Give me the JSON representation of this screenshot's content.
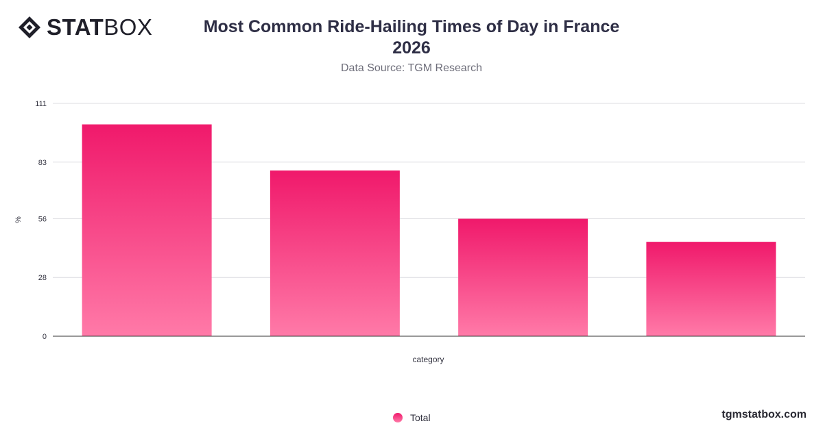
{
  "brand": {
    "logo_bold": "STAT",
    "logo_light": "BOX",
    "website": "tgmstatbox.com"
  },
  "header": {
    "title_line1": "Most Common Ride-Hailing Times of Day in France",
    "title_line2": "2026",
    "subtitle": "Data Source: TGM Research"
  },
  "colors": {
    "bar_top": "#f0196b",
    "bar_bottom": "#ff7aa8",
    "grid": "#dcdce0",
    "axis": "#333333",
    "text": "#333340"
  },
  "chart_data": {
    "type": "bar",
    "title": "Most Common Ride-Hailing Times of Day in France 2026",
    "subtitle": "Data Source: TGM Research",
    "xlabel": "category",
    "ylabel": "%",
    "categories": [
      "",
      "",
      "",
      ""
    ],
    "series": [
      {
        "name": "Total",
        "values": [
          101,
          79,
          56,
          45
        ]
      }
    ],
    "yticks": [
      0,
      28,
      56,
      83,
      111
    ],
    "ylim": [
      0,
      111
    ],
    "grid": true,
    "legend_position": "bottom-center"
  }
}
